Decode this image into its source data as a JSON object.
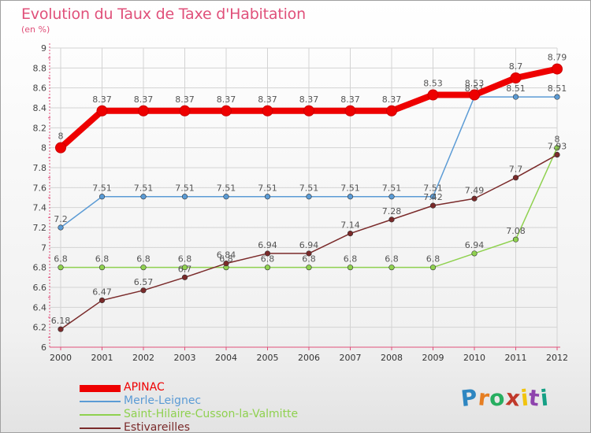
{
  "title": "Evolution du Taux de Taxe d'Habitation",
  "unit": "(en %)",
  "logo_text": "Proxiti",
  "colors": {
    "title": "#e0507a",
    "axis": "#e0507a",
    "grid": "#d3d3d3"
  },
  "chart_data": {
    "type": "line",
    "title": "Evolution du Taux de Taxe d'Habitation",
    "ylabel": "(en %)",
    "xlabel": "",
    "x": [
      "2000",
      "2001",
      "2002",
      "2003",
      "2004",
      "2005",
      "2006",
      "2007",
      "2008",
      "2009",
      "2010",
      "2011",
      "2012"
    ],
    "ylim": [
      6,
      9
    ],
    "yticks": [
      6,
      6.2,
      6.4,
      6.6,
      6.8,
      7,
      7.2,
      7.4,
      7.6,
      7.8,
      8,
      8.2,
      8.4,
      8.6,
      8.8,
      9
    ],
    "ytick_labels": [
      "6",
      "6.2",
      "6.4",
      "6.6",
      "6.8",
      "7",
      "7.2",
      "7.4",
      "7.6",
      "7.8",
      "8",
      "8.2",
      "8.4",
      "8.6",
      "8.8",
      "9"
    ],
    "grid": true,
    "legend_position": "bottom-left",
    "series": [
      {
        "name": "APINAC",
        "color": "#ee0000",
        "values": [
          8,
          8.37,
          8.37,
          8.37,
          8.37,
          8.37,
          8.37,
          8.37,
          8.37,
          8.53,
          8.53,
          8.7,
          8.79
        ],
        "labels": [
          "8",
          "8.37",
          "8.37",
          "8.37",
          "8.37",
          "8.37",
          "8.37",
          "8.37",
          "8.37",
          "8.53",
          "8.53",
          "8.7",
          "8.79"
        ]
      },
      {
        "name": "Merle-Leignec",
        "color": "#5b9bd5",
        "values": [
          7.2,
          7.51,
          7.51,
          7.51,
          7.51,
          7.51,
          7.51,
          7.51,
          7.51,
          7.51,
          8.51,
          8.51,
          8.51
        ],
        "labels": [
          "7.2",
          "7.51",
          "7.51",
          "7.51",
          "7.51",
          "7.51",
          "7.51",
          "7.51",
          "7.51",
          "7.51",
          "8.51",
          "8.51",
          "8.51"
        ]
      },
      {
        "name": "Saint-Hilaire-Cusson-la-Valmitte",
        "color": "#8fd14f",
        "values": [
          6.8,
          6.8,
          6.8,
          6.8,
          6.8,
          6.8,
          6.8,
          6.8,
          6.8,
          6.8,
          6.94,
          7.08,
          8
        ],
        "labels": [
          "6.8",
          "6.8",
          "6.8",
          "6.8",
          "6.8",
          "6.8",
          "6.8",
          "6.8",
          "6.8",
          "6.8",
          "6.94",
          "7.08",
          "8"
        ]
      },
      {
        "name": "Estivareilles",
        "color": "#7a2a2a",
        "values": [
          6.18,
          6.47,
          6.57,
          6.7,
          6.84,
          6.94,
          6.94,
          7.14,
          7.28,
          7.42,
          7.49,
          7.7,
          7.93
        ],
        "labels": [
          "6.18",
          "6.47",
          "6.57",
          "6.7",
          "6.84",
          "6.94",
          "6.94",
          "7.14",
          "7.28",
          "7.42",
          "7.49",
          "7.7",
          "7.93"
        ]
      }
    ]
  }
}
